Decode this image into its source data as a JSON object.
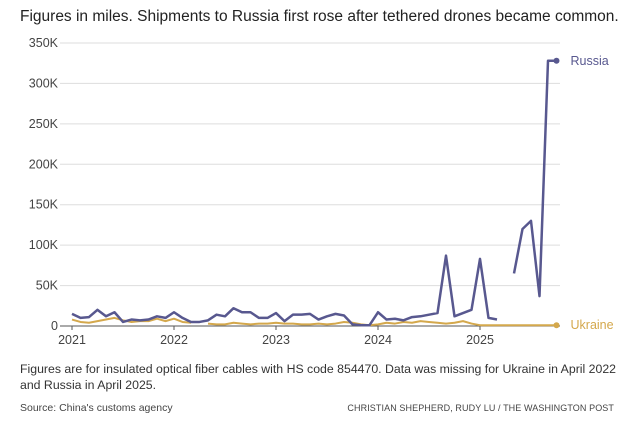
{
  "chart_data": {
    "type": "line",
    "title": "Figures in miles. Shipments to Russia first rose after tethered drones became common.",
    "note": "Figures are for insulated optical fiber cables with HS code 854470. Data was missing for Ukraine in April 2022 and Russia in April 2025.",
    "source": "Source: China's customs agency",
    "credit": "CHRISTIAN SHEPHERD, RUDY LU / THE WASHINGTON POST",
    "categories": [
      "2021",
      null,
      null,
      null,
      null,
      null,
      null,
      null,
      null,
      null,
      null,
      null,
      "2022",
      null,
      null,
      null,
      null,
      null,
      null,
      null,
      null,
      null,
      null,
      null,
      "2023",
      null,
      null,
      null,
      null,
      null,
      null,
      null,
      null,
      null,
      null,
      null,
      "2024",
      null,
      null,
      null,
      null,
      null,
      null,
      null,
      null,
      null,
      null,
      null,
      "2025",
      null,
      null,
      null,
      null,
      null,
      null,
      null,
      null,
      null
    ],
    "series": [
      {
        "name": "Russia",
        "color": "#58588f",
        "values": [
          15000,
          10000,
          11000,
          20000,
          12000,
          17000,
          5000,
          8000,
          7000,
          8000,
          12000,
          10000,
          17000,
          10000,
          5000,
          5000,
          7000,
          14000,
          12000,
          22000,
          17000,
          17000,
          10000,
          10000,
          16000,
          6000,
          14000,
          14000,
          15000,
          8000,
          12000,
          15000,
          13000,
          2000,
          1000,
          1000,
          17000,
          8000,
          9000,
          7000,
          11000,
          12000,
          14000,
          16000,
          87000,
          12000,
          16000,
          20000,
          83000,
          10000,
          8000,
          null,
          65000,
          120000,
          130000,
          37000,
          328000,
          328000
        ]
      },
      {
        "name": "Ukraine",
        "color": "#d4a84c",
        "values": [
          8000,
          5000,
          4000,
          6000,
          8000,
          10000,
          7000,
          5000,
          6000,
          6000,
          9000,
          6000,
          9000,
          5000,
          4000,
          null,
          3000,
          2000,
          2000,
          4000,
          3000,
          2000,
          3000,
          3000,
          4000,
          3000,
          3000,
          2000,
          2000,
          3000,
          2000,
          3000,
          5000,
          4000,
          2000,
          1000,
          2000,
          4000,
          3000,
          5000,
          4000,
          6000,
          5000,
          4000,
          3000,
          4000,
          6000,
          3000,
          1000,
          1000,
          1000,
          1000,
          1000,
          1000,
          1000,
          1000,
          1000,
          1000
        ]
      }
    ],
    "ylim": [
      0,
      350000
    ],
    "yticks": [
      {
        "value": 0,
        "label": "0"
      },
      {
        "value": 50000,
        "label": "50K"
      },
      {
        "value": 100000,
        "label": "100K"
      },
      {
        "value": 150000,
        "label": "150K"
      },
      {
        "value": 200000,
        "label": "200K"
      },
      {
        "value": 250000,
        "label": "250K"
      },
      {
        "value": 300000,
        "label": "300K"
      },
      {
        "value": 350000,
        "label": "350K"
      }
    ],
    "grid": true
  }
}
